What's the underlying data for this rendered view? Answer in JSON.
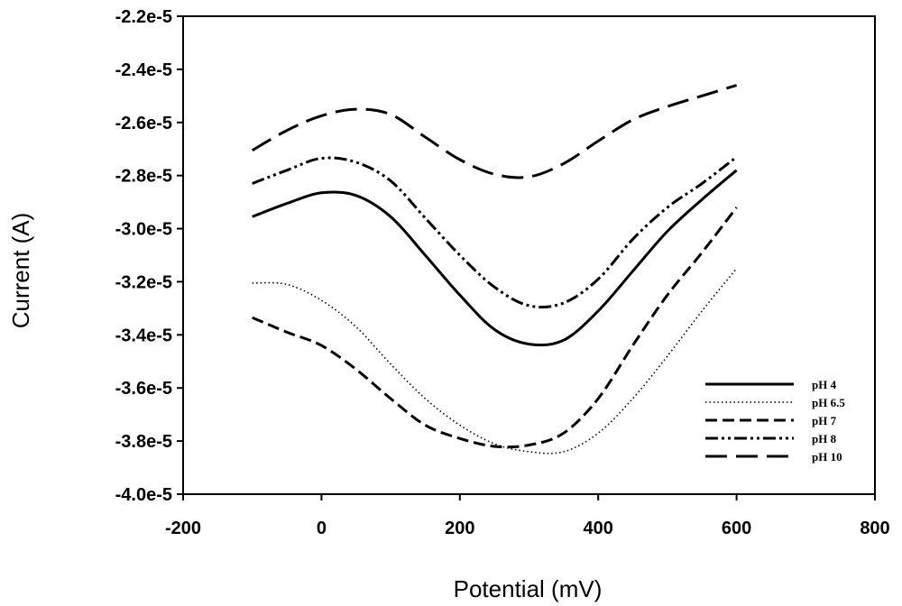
{
  "chart_data": {
    "type": "line",
    "title": "",
    "xlabel": "Potential (mV)",
    "ylabel": "Current (A)",
    "xlim": [
      -200,
      800
    ],
    "ylim": [
      -4e-05,
      -2.2e-05
    ],
    "xticks": [
      -200,
      0,
      200,
      400,
      600,
      800
    ],
    "xtick_labels": [
      "-200",
      "0",
      "200",
      "400",
      "600",
      "800"
    ],
    "yticks": [
      -2.2e-05,
      -2.4e-05,
      -2.6e-05,
      -2.8e-05,
      -3e-05,
      -3.2e-05,
      -3.4e-05,
      -3.6e-05,
      -3.8e-05,
      -4e-05
    ],
    "ytick_labels": [
      "-2.2e-5",
      "-2.4e-5",
      "-2.6e-5",
      "-2.8e-5",
      "-3.0e-5",
      "-3.2e-5",
      "-3.4e-5",
      "-3.6e-5",
      "-3.8e-5",
      "-4.0e-5"
    ],
    "grid": false,
    "legend_position": "bottom-right",
    "x": [
      -100,
      -50,
      0,
      50,
      100,
      150,
      200,
      250,
      300,
      350,
      400,
      450,
      500,
      550,
      600
    ],
    "series": [
      {
        "name": "pH 4",
        "style": "solid",
        "values": [
          -2.955e-05,
          -2.905e-05,
          -2.865e-05,
          -2.875e-05,
          -2.955e-05,
          -3.1e-05,
          -3.25e-05,
          -3.38e-05,
          -3.435e-05,
          -3.42e-05,
          -3.31e-05,
          -3.16e-05,
          -3.01e-05,
          -2.89e-05,
          -2.78e-05
        ]
      },
      {
        "name": "pH 6.5",
        "style": "dotted",
        "values": [
          -3.205e-05,
          -3.21e-05,
          -3.27e-05,
          -3.37e-05,
          -3.51e-05,
          -3.64e-05,
          -3.74e-05,
          -3.81e-05,
          -3.84e-05,
          -3.84e-05,
          -3.77e-05,
          -3.64e-05,
          -3.48e-05,
          -3.31e-05,
          -3.15e-05
        ]
      },
      {
        "name": "pH 7",
        "style": "dashed",
        "values": [
          -3.335e-05,
          -3.39e-05,
          -3.44e-05,
          -3.53e-05,
          -3.64e-05,
          -3.74e-05,
          -3.79e-05,
          -3.82e-05,
          -3.815e-05,
          -3.77e-05,
          -3.64e-05,
          -3.44e-05,
          -3.25e-05,
          -3.09e-05,
          -2.92e-05
        ]
      },
      {
        "name": "pH 8",
        "style": "dash-dot-dot",
        "values": [
          -2.83e-05,
          -2.78e-05,
          -2.735e-05,
          -2.75e-05,
          -2.82e-05,
          -2.96e-05,
          -3.1e-05,
          -3.22e-05,
          -3.29e-05,
          -3.28e-05,
          -3.19e-05,
          -3.04e-05,
          -2.92e-05,
          -2.83e-05,
          -2.73e-05
        ]
      },
      {
        "name": "pH 10",
        "style": "long-dash",
        "values": [
          -2.705e-05,
          -2.63e-05,
          -2.575e-05,
          -2.55e-05,
          -2.57e-05,
          -2.655e-05,
          -2.74e-05,
          -2.795e-05,
          -2.805e-05,
          -2.755e-05,
          -2.67e-05,
          -2.59e-05,
          -2.54e-05,
          -2.5e-05,
          -2.46e-05
        ]
      }
    ]
  }
}
